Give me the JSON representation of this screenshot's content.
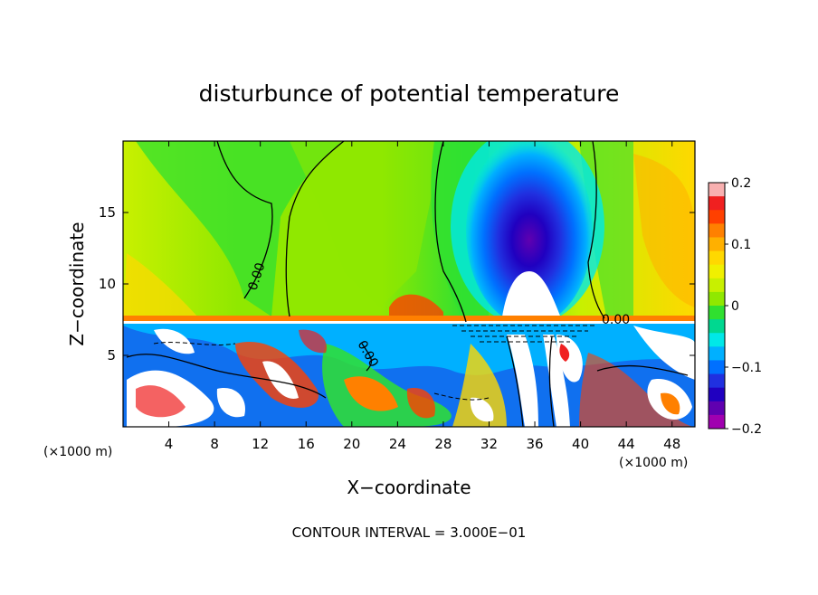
{
  "chart_data": {
    "type": "heatmap",
    "title": "disturbunce of potential temperature",
    "xlabel": "X−coordinate",
    "ylabel": "Z−coordinate",
    "x_unit_left": "(×1000 m)",
    "x_unit_right": "(×1000 m)",
    "x_ticks": [
      4,
      8,
      12,
      16,
      20,
      24,
      28,
      32,
      36,
      40,
      44,
      48
    ],
    "y_ticks": [
      5,
      10,
      15
    ],
    "xlim": [
      0,
      50
    ],
    "ylim": [
      0,
      20
    ],
    "contour_labels": [
      "0.00",
      "0.00",
      "0.00"
    ],
    "footer": "CONTOUR INTERVAL = 3.000E−01",
    "colorbar": {
      "tick_labels": [
        "0.2",
        "0.1",
        "0",
        "−0.1",
        "−0.2"
      ],
      "tick_values": [
        0.2,
        0.1,
        0.0,
        -0.1,
        -0.2
      ],
      "range": [
        -0.2,
        0.2
      ],
      "colors": [
        "#f8b0b0",
        "#f02020",
        "#ff4000",
        "#ff8000",
        "#ffb000",
        "#ffd800",
        "#f0f000",
        "#c8f000",
        "#90e800",
        "#30e030",
        "#00d890",
        "#00e8e8",
        "#00b0ff",
        "#0070ff",
        "#2030e0",
        "#2000c0",
        "#6000b0",
        "#a000b0"
      ]
    }
  }
}
